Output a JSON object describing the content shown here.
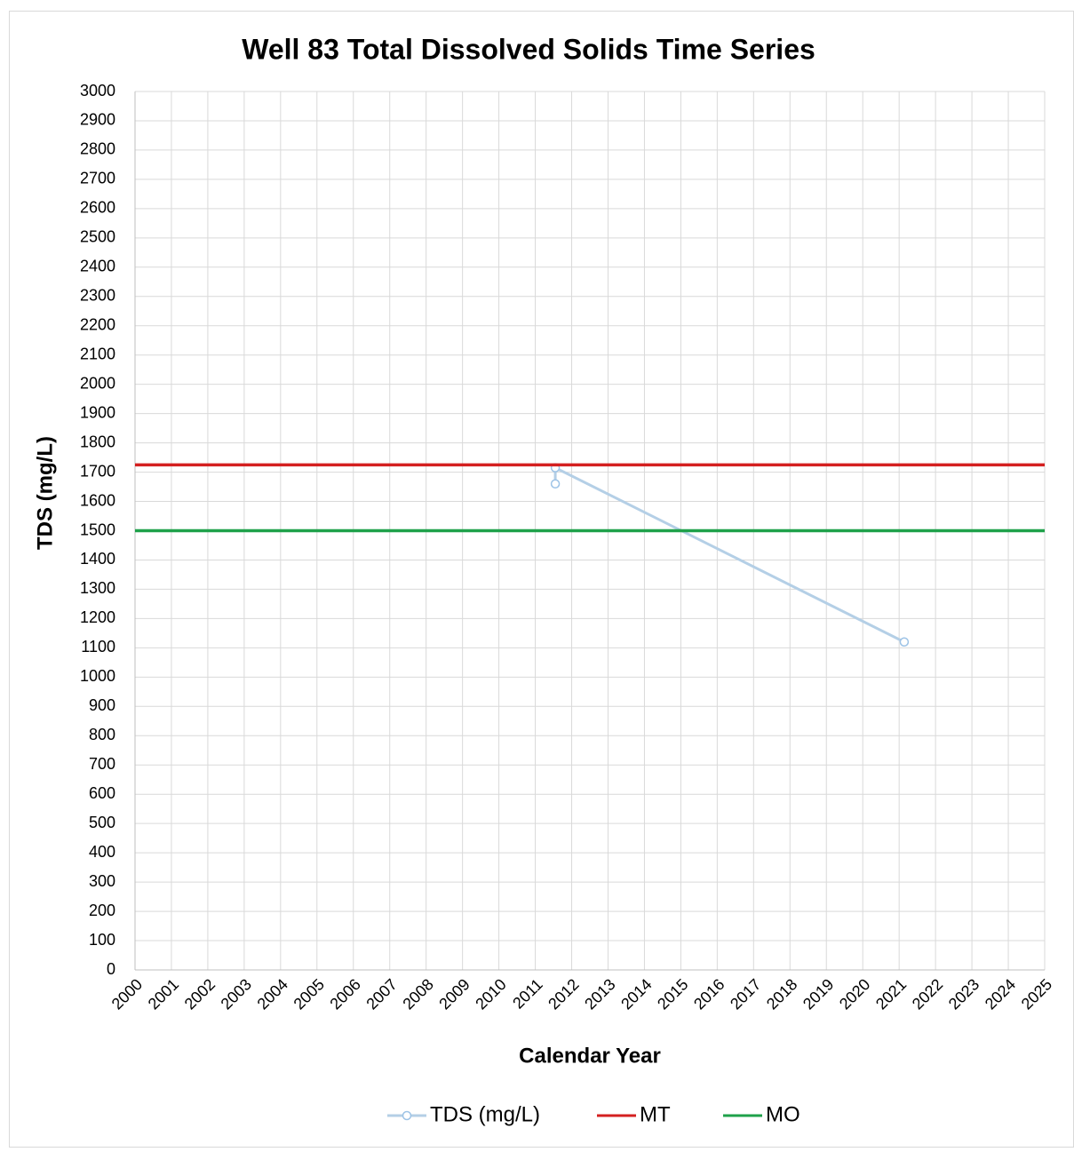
{
  "chart_data": {
    "type": "line",
    "title": "Well 83 Total Dissolved Solids Time Series",
    "xlabel": "Calendar Year",
    "ylabel": "TDS (mg/L)",
    "xlim": [
      2000,
      2025
    ],
    "xticks": [
      2000,
      2001,
      2002,
      2003,
      2004,
      2005,
      2006,
      2007,
      2008,
      2009,
      2010,
      2011,
      2012,
      2013,
      2014,
      2015,
      2016,
      2017,
      2018,
      2019,
      2020,
      2021,
      2022,
      2023,
      2024,
      2025
    ],
    "ylim": [
      0,
      3000
    ],
    "yticks": [
      0,
      100,
      200,
      300,
      400,
      500,
      600,
      700,
      800,
      900,
      1000,
      1100,
      1200,
      1300,
      1400,
      1500,
      1600,
      1700,
      1800,
      1900,
      2000,
      2100,
      2200,
      2300,
      2400,
      2500,
      2600,
      2700,
      2800,
      2900,
      3000
    ],
    "grid": true,
    "legend": "bottom",
    "series": [
      {
        "name": "TDS (mg/L)",
        "color": "#b4cfe6",
        "markers": true,
        "x": [
          2011.55,
          2011.55,
          2021.14
        ],
        "values": [
          1660,
          1715,
          1120
        ]
      },
      {
        "name": "MT",
        "color": "#d42020",
        "markers": false,
        "x": [
          2000,
          2025
        ],
        "values": [
          1725,
          1725
        ]
      },
      {
        "name": "MO",
        "color": "#1fa14a",
        "markers": false,
        "x": [
          2000,
          2025
        ],
        "values": [
          1500,
          1500
        ]
      }
    ]
  }
}
